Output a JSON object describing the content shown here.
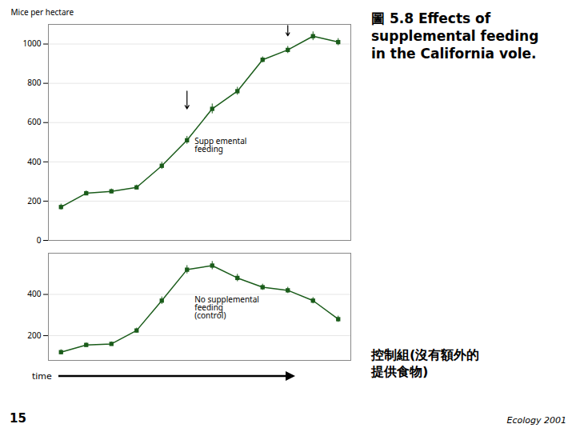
{
  "title": "圖 5.8 Effects of\nsupplemental feeding\nin the California vole.",
  "subtitle": "控制組(沒有額外的\n提供食物)",
  "caption": "Ecology 2001",
  "page_number": "15",
  "chart_data": [
    {
      "type": "line",
      "marker": "square",
      "color": "#1a5c1a",
      "x": [
        1,
        2,
        3,
        4,
        5,
        6,
        7,
        8,
        9,
        10,
        11,
        12
      ],
      "values": [
        170,
        240,
        250,
        270,
        380,
        510,
        670,
        760,
        920,
        970,
        1040,
        1010
      ],
      "yerr": [
        15,
        12,
        12,
        12,
        18,
        20,
        25,
        20,
        15,
        18,
        22,
        18
      ],
      "xlim": [
        0.5,
        12.5
      ],
      "ylim": [
        0,
        1100
      ],
      "yticks": [
        0,
        200,
        400,
        600,
        800,
        1000
      ],
      "ylabel": "Mice per hectare",
      "grid": true,
      "tick_labels": "y",
      "annotations": [
        {
          "text": "Supp emental\nfeeding",
          "x": 6.3,
          "y": 520
        }
      ],
      "arrows": [
        {
          "x": 6,
          "y_start": 760,
          "y_end": 670
        },
        {
          "x": 10,
          "y_start": 1095,
          "y_end": 1042
        }
      ]
    },
    {
      "type": "line",
      "marker": "square",
      "color": "#1a5c1a",
      "x": [
        1,
        2,
        3,
        4,
        5,
        6,
        7,
        8,
        9,
        10,
        11,
        12
      ],
      "values": [
        120,
        155,
        160,
        225,
        370,
        520,
        540,
        480,
        435,
        420,
        370,
        280
      ],
      "yerr": [
        12,
        10,
        10,
        12,
        18,
        20,
        20,
        18,
        15,
        15,
        15,
        15
      ],
      "xlim": [
        0.5,
        12.5
      ],
      "ylim": [
        80,
        600
      ],
      "yticks": [
        200,
        400
      ],
      "xlabel": "time",
      "grid": true,
      "tick_labels": "y",
      "annotations": [
        {
          "text": "No supplemental\nfeeding\n(control)",
          "x": 6.3,
          "y": 390
        }
      ]
    }
  ]
}
